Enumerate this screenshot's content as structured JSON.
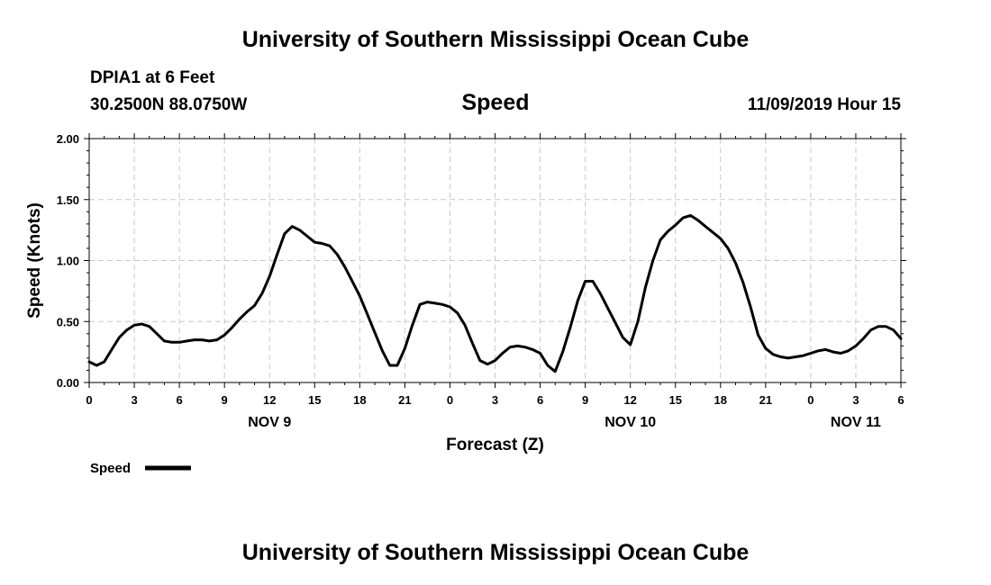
{
  "header": {
    "title": "University of Southern Mississippi Ocean Cube",
    "station": "DPIA1 at 6 Feet",
    "coords": "30.2500N 88.0750W",
    "date": "11/09/2019 Hour 15"
  },
  "footer": {
    "title": "University of Southern Mississippi Ocean Cube"
  },
  "chart_data": {
    "type": "line",
    "title": "Speed",
    "xlabel": "Forecast (Z)",
    "ylabel": "Speed (Knots)",
    "ylim": [
      0,
      2.0
    ],
    "xlim": [
      0,
      54
    ],
    "grid": true,
    "y_ticks": [
      "0.00",
      "0.50",
      "1.00",
      "1.50",
      "2.00"
    ],
    "y_tick_values": [
      0,
      0.5,
      1.0,
      1.5,
      2.0
    ],
    "x_ticks": [
      "0",
      "3",
      "6",
      "9",
      "12",
      "15",
      "18",
      "21",
      "0",
      "3",
      "6",
      "9",
      "12",
      "15",
      "18",
      "21",
      "0",
      "3",
      "6"
    ],
    "day_labels": [
      {
        "label": "NOV 9",
        "hour": 12
      },
      {
        "label": "NOV 10",
        "hour": 36
      },
      {
        "label": "NOV 11",
        "hour": 51
      }
    ],
    "legend": {
      "label": "Speed",
      "position": "bottom-left"
    },
    "line_color": "#000000",
    "series": [
      {
        "name": "Speed",
        "x": [
          0,
          0.5,
          1,
          1.5,
          2,
          2.5,
          3,
          3.5,
          4,
          4.5,
          5,
          5.5,
          6,
          6.5,
          7,
          7.5,
          8,
          8.5,
          9,
          9.5,
          10,
          10.5,
          11,
          11.5,
          12,
          12.5,
          13,
          13.5,
          14,
          14.5,
          15,
          15.5,
          16,
          16.5,
          17,
          17.5,
          18,
          18.5,
          19,
          19.5,
          20,
          20.5,
          21,
          21.5,
          22,
          22.5,
          23,
          23.5,
          24,
          24.5,
          25,
          25.5,
          26,
          26.5,
          27,
          27.5,
          28,
          28.5,
          29,
          29.5,
          30,
          30.5,
          31,
          31.5,
          32,
          32.5,
          33,
          33.5,
          34,
          34.5,
          35,
          35.5,
          36,
          36.5,
          37,
          37.5,
          38,
          38.5,
          39,
          39.5,
          40,
          40.5,
          41,
          41.5,
          42,
          42.5,
          43,
          43.5,
          44,
          44.5,
          45,
          45.5,
          46,
          46.5,
          47,
          47.5,
          48,
          48.5,
          49,
          49.5,
          50,
          50.5,
          51,
          51.5,
          52,
          52.5,
          53,
          53.5,
          54
        ],
        "values": [
          0.17,
          0.14,
          0.17,
          0.27,
          0.37,
          0.43,
          0.47,
          0.48,
          0.46,
          0.4,
          0.34,
          0.33,
          0.33,
          0.34,
          0.35,
          0.35,
          0.34,
          0.35,
          0.39,
          0.45,
          0.52,
          0.58,
          0.63,
          0.73,
          0.87,
          1.05,
          1.22,
          1.28,
          1.25,
          1.2,
          1.15,
          1.14,
          1.12,
          1.05,
          0.95,
          0.83,
          0.71,
          0.56,
          0.41,
          0.26,
          0.14,
          0.14,
          0.28,
          0.47,
          0.64,
          0.66,
          0.65,
          0.64,
          0.62,
          0.57,
          0.47,
          0.32,
          0.18,
          0.15,
          0.18,
          0.24,
          0.29,
          0.3,
          0.29,
          0.27,
          0.24,
          0.14,
          0.09,
          0.25,
          0.45,
          0.67,
          0.83,
          0.83,
          0.73,
          0.61,
          0.49,
          0.37,
          0.31,
          0.5,
          0.78,
          1.0,
          1.17,
          1.24,
          1.29,
          1.35,
          1.37,
          1.33,
          1.28,
          1.23,
          1.18,
          1.1,
          0.98,
          0.82,
          0.62,
          0.39,
          0.28,
          0.23,
          0.21,
          0.2,
          0.21,
          0.22,
          0.24,
          0.26,
          0.27,
          0.25,
          0.24,
          0.26,
          0.3,
          0.36,
          0.43,
          0.46,
          0.46,
          0.43,
          0.36
        ]
      }
    ]
  }
}
